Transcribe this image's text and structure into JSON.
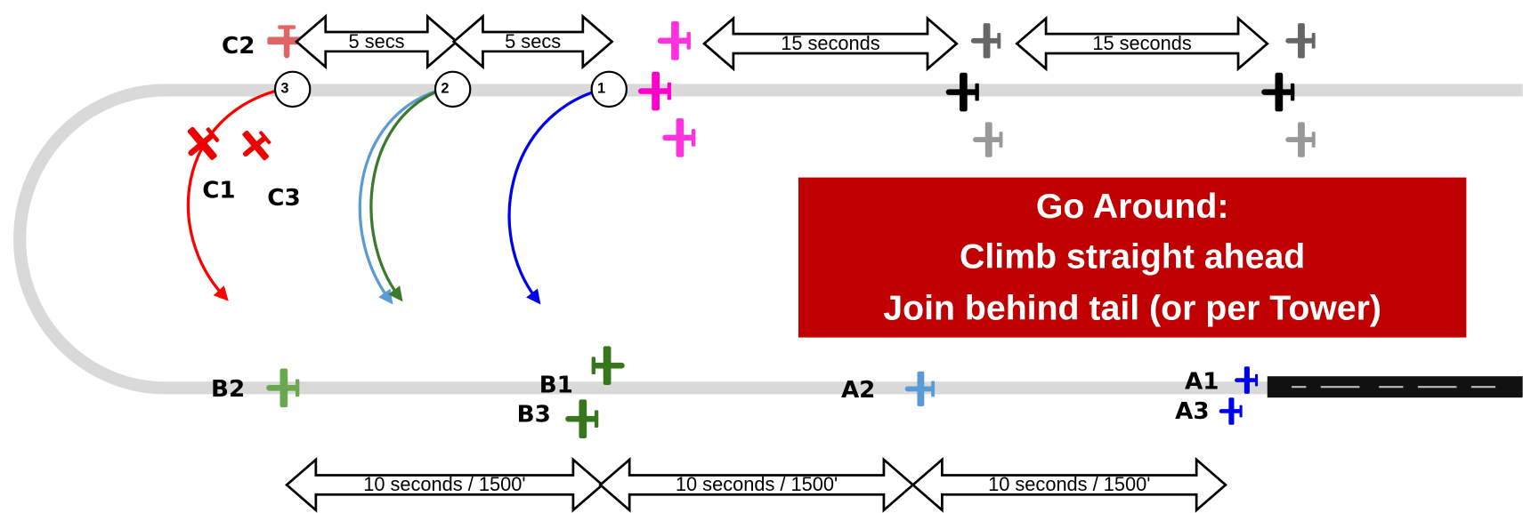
{
  "aircraft_labels": {
    "c2": "C2",
    "c1": "C1",
    "c3": "C3",
    "b2": "B2",
    "b1": "B1",
    "b3": "B3",
    "a2": "A2",
    "a1": "A1",
    "a3": "A3"
  },
  "top_arrows": [
    "5 secs",
    "5 secs",
    "15 seconds",
    "15 seconds"
  ],
  "bottom_arrows": [
    "10 seconds / 1500'",
    "10 seconds / 1500'",
    "10 seconds / 1500'"
  ],
  "waypoints": [
    "3",
    "2",
    "1"
  ],
  "callout": {
    "lines": [
      "Go Around:",
      "Climb straight ahead",
      "Join behind tail (or per Tower)"
    ]
  }
}
